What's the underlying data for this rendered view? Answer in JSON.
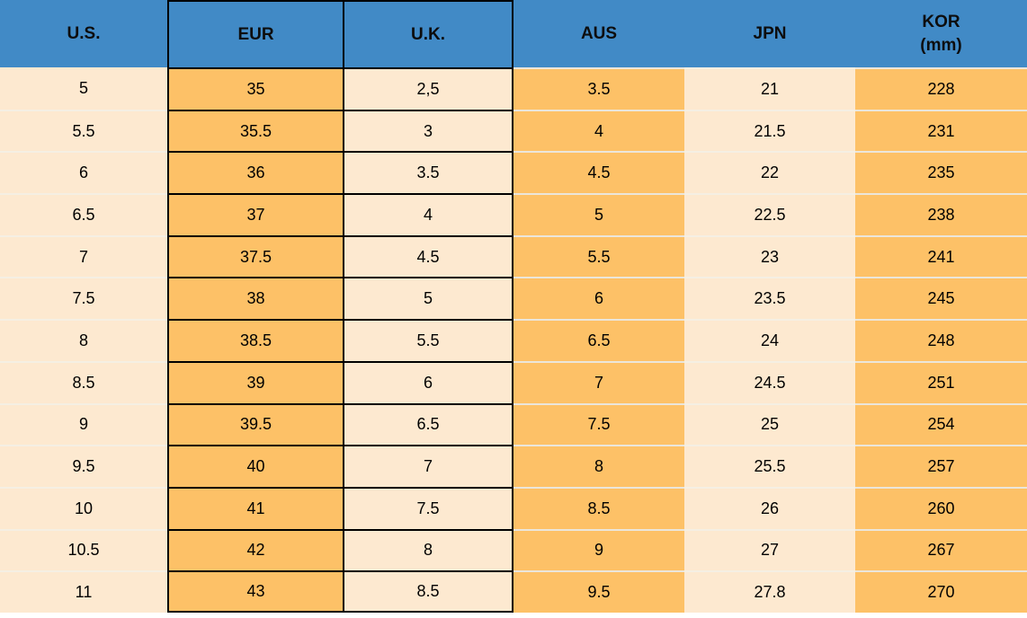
{
  "colors": {
    "header_blue": "#418AC6",
    "row_orange": "#FDC167",
    "row_cream": "#FDE9D0",
    "border_black": "#000000",
    "separator_light": "#EBE6DB",
    "text": "#000000"
  },
  "table": {
    "columns": [
      {
        "key": "us",
        "label": "U.S."
      },
      {
        "key": "eur",
        "label": "EUR"
      },
      {
        "key": "uk",
        "label": "U.K."
      },
      {
        "key": "aus",
        "label": "AUS"
      },
      {
        "key": "jpn",
        "label": "JPN"
      },
      {
        "key": "kor",
        "label": "KOR",
        "sublabel": "(mm)"
      }
    ],
    "rows": [
      {
        "us": "5",
        "eur": "35",
        "uk": "2,5",
        "aus": "3.5",
        "jpn": "21",
        "kor": "228"
      },
      {
        "us": "5.5",
        "eur": "35.5",
        "uk": "3",
        "aus": "4",
        "jpn": "21.5",
        "kor": "231"
      },
      {
        "us": "6",
        "eur": "36",
        "uk": "3.5",
        "aus": "4.5",
        "jpn": "22",
        "kor": "235"
      },
      {
        "us": "6.5",
        "eur": "37",
        "uk": "4",
        "aus": "5",
        "jpn": "22.5",
        "kor": "238"
      },
      {
        "us": "7",
        "eur": "37.5",
        "uk": "4.5",
        "aus": "5.5",
        "jpn": "23",
        "kor": "241"
      },
      {
        "us": "7.5",
        "eur": "38",
        "uk": "5",
        "aus": "6",
        "jpn": "23.5",
        "kor": "245"
      },
      {
        "us": "8",
        "eur": "38.5",
        "uk": "5.5",
        "aus": "6.5",
        "jpn": "24",
        "kor": "248"
      },
      {
        "us": "8.5",
        "eur": "39",
        "uk": "6",
        "aus": "7",
        "jpn": "24.5",
        "kor": "251"
      },
      {
        "us": "9",
        "eur": "39.5",
        "uk": "6.5",
        "aus": "7.5",
        "jpn": "25",
        "kor": "254"
      },
      {
        "us": "9.5",
        "eur": "40",
        "uk": "7",
        "aus": "8",
        "jpn": "25.5",
        "kor": "257"
      },
      {
        "us": "10",
        "eur": "41",
        "uk": "7.5",
        "aus": "8.5",
        "jpn": "26",
        "kor": "260"
      },
      {
        "us": "10.5",
        "eur": "42",
        "uk": "8",
        "aus": "9",
        "jpn": "27",
        "kor": "267"
      },
      {
        "us": "11",
        "eur": "43",
        "uk": "8.5",
        "aus": "9.5",
        "jpn": "27.8",
        "kor": "270"
      }
    ]
  },
  "chart_data": {
    "type": "table",
    "columns": [
      "U.S.",
      "EUR",
      "U.K.",
      "AUS",
      "JPN",
      "KOR (mm)"
    ],
    "rows": [
      [
        "5",
        "35",
        "2,5",
        "3.5",
        "21",
        "228"
      ],
      [
        "5.5",
        "35.5",
        "3",
        "4",
        "21.5",
        "231"
      ],
      [
        "6",
        "36",
        "3.5",
        "4.5",
        "22",
        "235"
      ],
      [
        "6.5",
        "37",
        "4",
        "5",
        "22.5",
        "238"
      ],
      [
        "7",
        "37.5",
        "4.5",
        "5.5",
        "23",
        "241"
      ],
      [
        "7.5",
        "38",
        "5",
        "6",
        "23.5",
        "245"
      ],
      [
        "8",
        "38.5",
        "5.5",
        "6.5",
        "24",
        "248"
      ],
      [
        "8.5",
        "39",
        "6",
        "7",
        "24.5",
        "251"
      ],
      [
        "9",
        "39.5",
        "6.5",
        "7.5",
        "25",
        "254"
      ],
      [
        "9.5",
        "40",
        "7",
        "8",
        "25.5",
        "257"
      ],
      [
        "10",
        "41",
        "7.5",
        "8.5",
        "26",
        "260"
      ],
      [
        "10.5",
        "42",
        "8",
        "9",
        "27",
        "267"
      ],
      [
        "11",
        "43",
        "8.5",
        "9.5",
        "27.8",
        "270"
      ]
    ],
    "layout": {
      "header_row": true,
      "bordered_columns": [
        "EUR",
        "U.K."
      ],
      "grid": "on"
    }
  }
}
